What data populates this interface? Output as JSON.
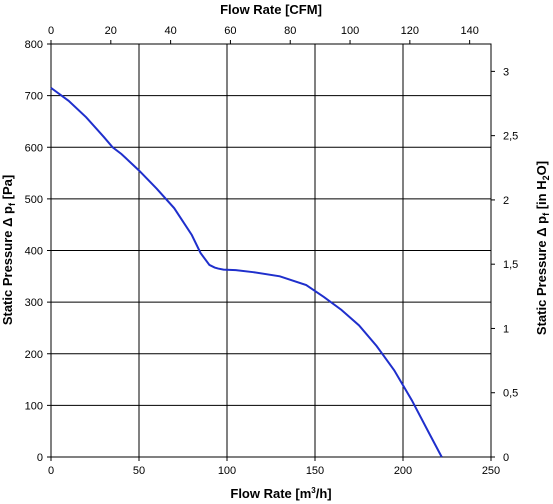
{
  "chart_data": {
    "type": "line",
    "title": "",
    "x_bottom": {
      "label_prefix": "Flow Rate [m",
      "label_sup": "3",
      "label_suffix": "/h]",
      "range": [
        0,
        250
      ],
      "ticks": [
        "0",
        "50",
        "100",
        "150",
        "200",
        "250"
      ]
    },
    "x_top": {
      "label": "Flow Rate [CFM]",
      "range_cfm": [
        0,
        147.14
      ],
      "ticks": [
        "0",
        "20",
        "40",
        "60",
        "80",
        "100",
        "120",
        "140"
      ]
    },
    "y_left": {
      "label_prefix": "Static Pressure Δ p",
      "label_sub": "f",
      "label_suffix": " [Pa]",
      "range": [
        0,
        800
      ],
      "ticks": [
        "0",
        "100",
        "200",
        "300",
        "400",
        "500",
        "600",
        "700",
        "800"
      ]
    },
    "y_right": {
      "label_prefix": "Static Pressure Δ p",
      "label_sub": "f",
      "label_mid": " [in H",
      "label_sub2": "2",
      "label_suffix": "O]",
      "range_inh2o": [
        0,
        3.213
      ],
      "ticks": [
        "0",
        "0,5",
        "1",
        "1,5",
        "2",
        "2,5",
        "3"
      ]
    },
    "grid": true,
    "line_color": "#1f2fcc",
    "series": [
      {
        "x": [
          0,
          10,
          20,
          30,
          35,
          40,
          50,
          60,
          70,
          80,
          85,
          90,
          93,
          95,
          98,
          105,
          115,
          130,
          145,
          155,
          165,
          175,
          185,
          195,
          205,
          215,
          222
        ],
        "y": [
          715,
          690,
          658,
          620,
          600,
          587,
          555,
          520,
          482,
          430,
          395,
          372,
          367,
          365,
          363,
          362,
          358,
          350,
          333,
          310,
          285,
          255,
          215,
          168,
          110,
          45,
          0
        ]
      }
    ]
  }
}
